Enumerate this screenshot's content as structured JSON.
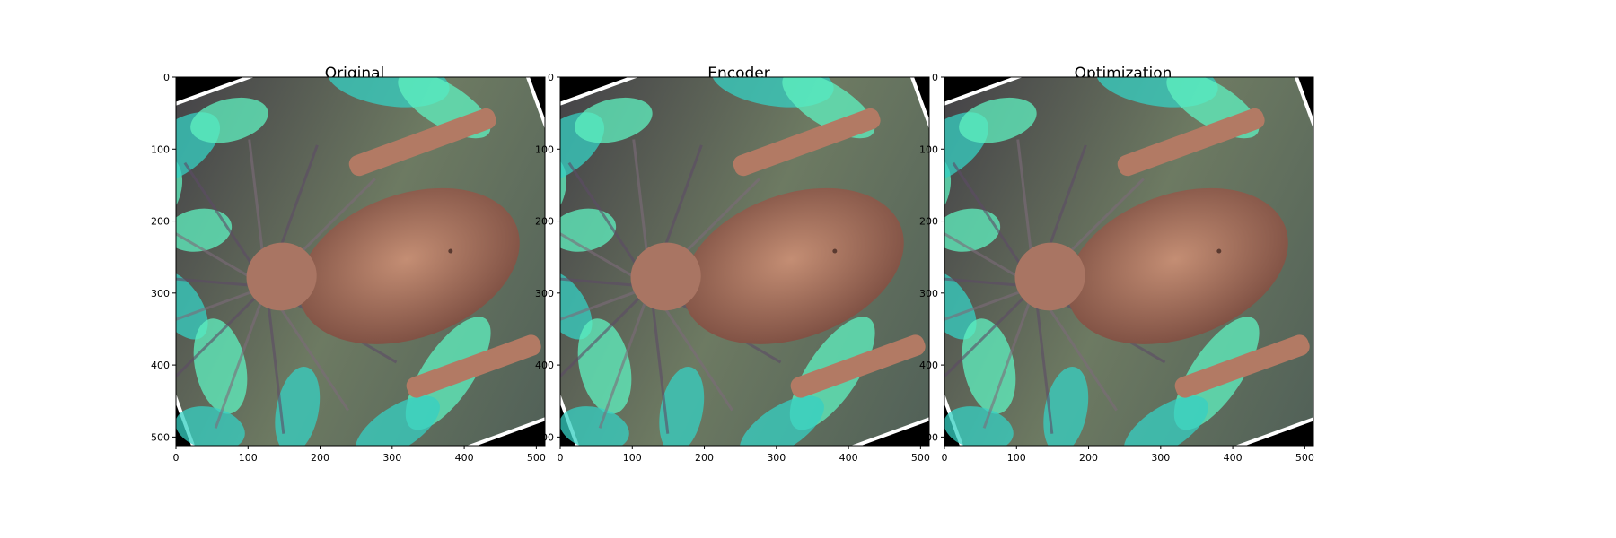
{
  "figure": {
    "background": "#ffffff"
  },
  "chart_data": [
    {
      "type": "image",
      "title": "Original",
      "xlim": [
        0,
        512
      ],
      "ylim": [
        512,
        0
      ],
      "xticks": [
        0,
        100,
        200,
        300,
        400,
        500
      ],
      "yticks": [
        0,
        100,
        200,
        300,
        400,
        500
      ],
      "image_content": "rotated photo of a woman with teal and purple feather headdress",
      "rotation_deg": -20,
      "border_color": "#ffffff",
      "fill_color": "#000000"
    },
    {
      "type": "image",
      "title": "Encoder",
      "xlim": [
        0,
        512
      ],
      "ylim": [
        512,
        0
      ],
      "xticks": [
        0,
        100,
        200,
        300,
        400,
        500
      ],
      "yticks": [
        0,
        100,
        200,
        300,
        400,
        500
      ],
      "image_content": "rotated photo of a woman with teal and purple feather headdress",
      "rotation_deg": -20,
      "border_color": "#ffffff",
      "fill_color": "#000000"
    },
    {
      "type": "image",
      "title": "Optimization",
      "xlim": [
        0,
        512
      ],
      "ylim": [
        512,
        0
      ],
      "xticks": [
        0,
        100,
        200,
        300,
        400,
        500
      ],
      "yticks": [
        0,
        100,
        200,
        300,
        400,
        500
      ],
      "image_content": "rotated photo of a woman with teal and purple feather headdress",
      "rotation_deg": -20,
      "border_color": "#ffffff",
      "fill_color": "#000000"
    }
  ],
  "palette": {
    "bg_dark": "#2e2a33",
    "teal": "#35d0c3",
    "teal_bright": "#5ff2c0",
    "skin": "#b27a64",
    "skin_dark": "#7a4c40",
    "hair": "#7d6b7a",
    "olive": "#6d7a62",
    "purple": "#5d4b66"
  }
}
